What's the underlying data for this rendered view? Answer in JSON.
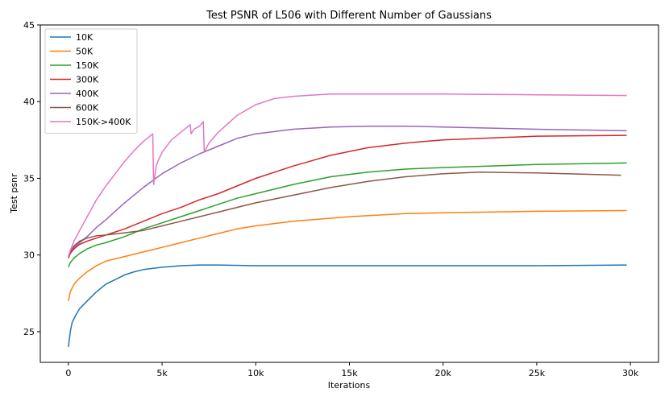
{
  "chart_data": {
    "type": "line",
    "title": "Test PSNR of L506 with Different Number of Gaussians",
    "xlabel": "Iterations",
    "ylabel": "Test psnr",
    "xlim": [
      -1500,
      31500
    ],
    "ylim": [
      23,
      45
    ],
    "x_ticks": [
      0,
      5000,
      10000,
      15000,
      20000,
      25000,
      30000
    ],
    "x_tick_labels": [
      "0",
      "5k",
      "10k",
      "15k",
      "20k",
      "25k",
      "30k"
    ],
    "y_ticks": [
      25,
      30,
      35,
      40,
      45
    ],
    "y_tick_labels": [
      "25",
      "30",
      "35",
      "40",
      "45"
    ],
    "grid": false,
    "legend_position": "top-left",
    "series": [
      {
        "name": "10K",
        "color": "#1f77b4",
        "x": [
          0,
          100,
          200,
          400,
          600,
          1000,
          1500,
          2000,
          2500,
          3000,
          3500,
          4000,
          5000,
          6000,
          7000,
          8000,
          10000,
          15000,
          20000,
          25000,
          29800
        ],
        "y": [
          24.0,
          25.0,
          25.6,
          26.1,
          26.5,
          27.0,
          27.6,
          28.1,
          28.4,
          28.7,
          28.9,
          29.05,
          29.2,
          29.3,
          29.35,
          29.35,
          29.3,
          29.3,
          29.3,
          29.3,
          29.35
        ]
      },
      {
        "name": "50K",
        "color": "#ff7f0e",
        "x": [
          0,
          100,
          300,
          600,
          1000,
          1500,
          2000,
          3000,
          4000,
          5000,
          6000,
          7000,
          8000,
          9000,
          10000,
          12000,
          15000,
          18000,
          20000,
          25000,
          29800
        ],
        "y": [
          27.0,
          27.6,
          28.1,
          28.5,
          28.9,
          29.3,
          29.6,
          29.9,
          30.2,
          30.5,
          30.8,
          31.1,
          31.4,
          31.7,
          31.9,
          32.2,
          32.5,
          32.7,
          32.75,
          32.85,
          32.9
        ]
      },
      {
        "name": "150K",
        "color": "#2ca02c",
        "x": [
          0,
          100,
          300,
          600,
          1000,
          1500,
          2000,
          3000,
          4000,
          5000,
          6000,
          7000,
          8000,
          9000,
          10000,
          12000,
          14000,
          16000,
          18000,
          20000,
          25000,
          29800
        ],
        "y": [
          29.2,
          29.5,
          29.8,
          30.1,
          30.4,
          30.65,
          30.8,
          31.2,
          31.7,
          32.1,
          32.5,
          32.9,
          33.3,
          33.7,
          34.0,
          34.6,
          35.1,
          35.4,
          35.6,
          35.7,
          35.9,
          36.0
        ]
      },
      {
        "name": "300K",
        "color": "#d62728",
        "x": [
          0,
          100,
          300,
          600,
          1000,
          1500,
          2000,
          3000,
          4000,
          5000,
          6000,
          7000,
          8000,
          9000,
          10000,
          12000,
          14000,
          16000,
          18000,
          20000,
          22000,
          25000,
          29800
        ],
        "y": [
          29.8,
          30.1,
          30.4,
          30.7,
          30.9,
          31.1,
          31.3,
          31.7,
          32.2,
          32.7,
          33.1,
          33.6,
          34.0,
          34.5,
          35.0,
          35.8,
          36.5,
          37.0,
          37.3,
          37.5,
          37.6,
          37.75,
          37.8
        ]
      },
      {
        "name": "400K",
        "color": "#9467bd",
        "x": [
          0,
          100,
          300,
          600,
          1000,
          1500,
          2000,
          3000,
          4000,
          5000,
          6000,
          7000,
          8000,
          9000,
          10000,
          12000,
          14000,
          16000,
          18000,
          20000,
          25000,
          29800
        ],
        "y": [
          29.9,
          30.2,
          30.5,
          30.8,
          31.2,
          31.8,
          32.3,
          33.4,
          34.4,
          35.3,
          36.0,
          36.6,
          37.1,
          37.6,
          37.9,
          38.2,
          38.35,
          38.4,
          38.4,
          38.35,
          38.2,
          38.1
        ]
      },
      {
        "name": "600K",
        "color": "#8c564b",
        "x": [
          0,
          100,
          300,
          600,
          1000,
          1500,
          2000,
          3000,
          4000,
          5000,
          6000,
          7000,
          8000,
          9000,
          10000,
          12000,
          14000,
          16000,
          18000,
          20000,
          22000,
          25000,
          29500
        ],
        "y": [
          29.8,
          30.2,
          30.6,
          30.9,
          31.1,
          31.25,
          31.3,
          31.45,
          31.6,
          31.9,
          32.2,
          32.5,
          32.8,
          33.1,
          33.4,
          33.9,
          34.4,
          34.8,
          35.1,
          35.3,
          35.4,
          35.35,
          35.2
        ]
      },
      {
        "name": "150K->400K",
        "color": "#e377c2",
        "x": [
          0,
          100,
          300,
          600,
          1000,
          1500,
          2000,
          2500,
          3000,
          3500,
          4000,
          4500,
          4550,
          4700,
          5000,
          5500,
          6000,
          6500,
          6550,
          6700,
          7000,
          7200,
          7250,
          7500,
          8000,
          9000,
          10000,
          11000,
          12000,
          14000,
          16000,
          18000,
          20000,
          25000,
          29800
        ],
        "y": [
          29.9,
          30.3,
          30.9,
          31.6,
          32.5,
          33.6,
          34.5,
          35.3,
          36.1,
          36.8,
          37.4,
          37.9,
          34.6,
          35.9,
          36.7,
          37.5,
          38.0,
          38.5,
          37.9,
          38.2,
          38.4,
          38.7,
          36.7,
          37.3,
          38.0,
          39.1,
          39.8,
          40.2,
          40.35,
          40.5,
          40.5,
          40.5,
          40.5,
          40.45,
          40.4
        ]
      }
    ]
  }
}
